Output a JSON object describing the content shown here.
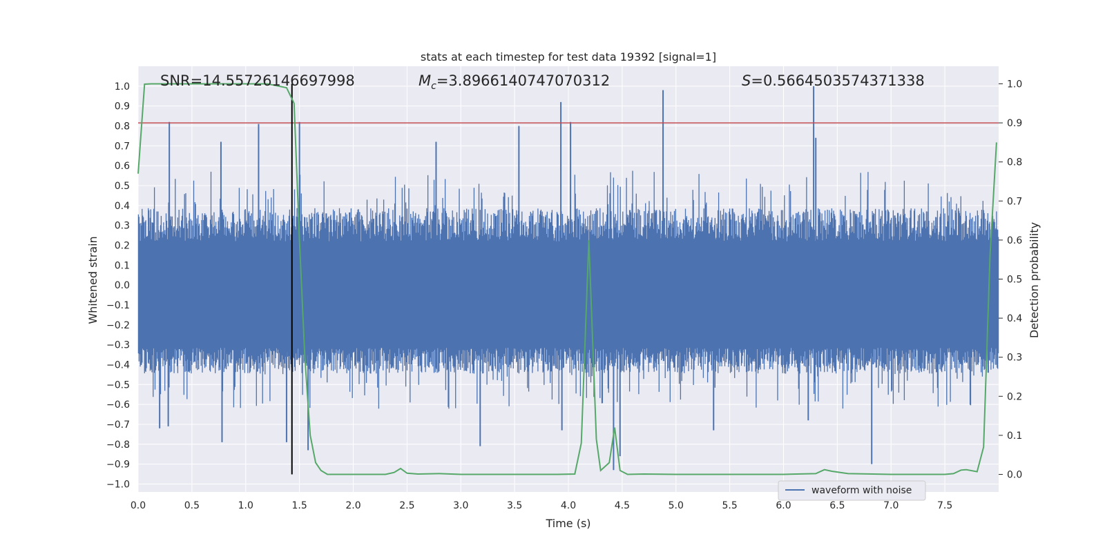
{
  "chart_data": {
    "type": "line",
    "title": "stats at each timestep for test data 19392 [signal=1]",
    "xlabel": "Time (s)",
    "ylabel_left": "Whitened strain",
    "ylabel_right": "Detection probability",
    "xlim": [
      0.0,
      8.0
    ],
    "ylim_left": [
      -1.04,
      1.1
    ],
    "ylim_right": [
      -0.045,
      1.045
    ],
    "x_ticks": [
      "0.0",
      "0.5",
      "1.0",
      "1.5",
      "2.0",
      "2.5",
      "3.0",
      "3.5",
      "4.0",
      "4.5",
      "5.0",
      "5.5",
      "6.0",
      "6.5",
      "7.0",
      "7.5"
    ],
    "x_tick_values": [
      0.0,
      0.5,
      1.0,
      1.5,
      2.0,
      2.5,
      3.0,
      3.5,
      4.0,
      4.5,
      5.0,
      5.5,
      6.0,
      6.5,
      7.0,
      7.5
    ],
    "y_left_ticks": [
      "1.0",
      "0.9",
      "0.8",
      "0.7",
      "0.6",
      "0.5",
      "0.4",
      "0.3",
      "0.2",
      "0.1",
      "0.0",
      "−0.1",
      "−0.2",
      "−0.3",
      "−0.4",
      "−0.5",
      "−0.6",
      "−0.7",
      "−0.8",
      "−0.9",
      "−1.0"
    ],
    "y_left_tick_values": [
      1.0,
      0.9,
      0.8,
      0.7,
      0.6,
      0.5,
      0.4,
      0.3,
      0.2,
      0.1,
      0.0,
      -0.1,
      -0.2,
      -0.3,
      -0.4,
      -0.5,
      -0.6,
      -0.7,
      -0.8,
      -0.9,
      -1.0
    ],
    "y_right_ticks": [
      "1.0",
      "0.9",
      "0.8",
      "0.7",
      "0.6",
      "0.5",
      "0.4",
      "0.3",
      "0.2",
      "0.1",
      "0.0"
    ],
    "y_right_tick_values": [
      1.0,
      0.9,
      0.8,
      0.7,
      0.6,
      0.5,
      0.4,
      0.3,
      0.2,
      0.1,
      0.0
    ],
    "annotations": {
      "snr": "SNR=14.55726146697998",
      "mc_symbol": "M",
      "mc_subscript": "c",
      "mc_value": "=3.8966140747070312",
      "s_symbol": "S",
      "s_value": "=0.5664503574371338"
    },
    "threshold": {
      "value": 0.9,
      "axis": "right",
      "color": "#c44e52"
    },
    "vertical_marker": {
      "x": 1.43,
      "y_from": 0.0,
      "y_to": 1.0,
      "axis": "right",
      "color": "#000000"
    },
    "series": [
      {
        "name": "waveform with noise",
        "axis": "left",
        "color": "#4c72b0",
        "description_stats": {
          "band_low": -0.35,
          "band_high": 0.4
        },
        "spikes": [
          {
            "x": 0.29,
            "y": 0.82
          },
          {
            "x": 1.12,
            "y": 0.81
          },
          {
            "x": 1.5,
            "y": 0.82
          },
          {
            "x": 3.54,
            "y": 0.8
          },
          {
            "x": 3.93,
            "y": 0.92
          },
          {
            "x": 4.02,
            "y": 0.82
          },
          {
            "x": 4.88,
            "y": 0.98
          },
          {
            "x": 6.28,
            "y": 1.0
          },
          {
            "x": 6.3,
            "y": 0.74
          },
          {
            "x": 0.77,
            "y": 0.72
          },
          {
            "x": 2.77,
            "y": 0.72
          },
          {
            "x": 0.28,
            "y": -0.71
          },
          {
            "x": 0.78,
            "y": -0.79
          },
          {
            "x": 1.38,
            "y": -0.79
          },
          {
            "x": 1.58,
            "y": -0.83
          },
          {
            "x": 3.18,
            "y": -0.81
          },
          {
            "x": 3.94,
            "y": -0.73
          },
          {
            "x": 4.42,
            "y": -0.93
          },
          {
            "x": 4.48,
            "y": -0.86
          },
          {
            "x": 5.35,
            "y": -0.73
          },
          {
            "x": 6.82,
            "y": -0.9
          },
          {
            "x": 6.23,
            "y": -0.68
          },
          {
            "x": 0.2,
            "y": -0.72
          }
        ]
      },
      {
        "name": "",
        "axis": "right",
        "color": "#55a868",
        "x": [
          0.0,
          0.06,
          0.12,
          0.3,
          0.6,
          0.9,
          1.2,
          1.38,
          1.45,
          1.5,
          1.55,
          1.6,
          1.65,
          1.7,
          1.76,
          1.85,
          2.0,
          2.3,
          2.38,
          2.44,
          2.5,
          2.6,
          2.8,
          3.0,
          3.5,
          3.9,
          4.06,
          4.12,
          4.19,
          4.26,
          4.3,
          4.38,
          4.43,
          4.48,
          4.55,
          4.7,
          5.0,
          5.5,
          6.0,
          6.3,
          6.38,
          6.45,
          6.6,
          7.0,
          7.5,
          7.58,
          7.65,
          7.7,
          7.8,
          7.86,
          7.92,
          7.98
        ],
        "y": [
          0.77,
          0.999,
          1.0,
          1.0,
          1.0,
          1.0,
          1.0,
          0.99,
          0.95,
          0.6,
          0.3,
          0.1,
          0.03,
          0.01,
          0.0,
          0.0,
          0.0,
          0.0,
          0.005,
          0.015,
          0.003,
          0.001,
          0.002,
          0.0,
          0.0,
          0.0,
          0.001,
          0.08,
          0.6,
          0.09,
          0.01,
          0.03,
          0.12,
          0.01,
          0.0,
          0.001,
          0.0,
          0.0,
          0.0,
          0.002,
          0.012,
          0.008,
          0.002,
          0.0,
          0.0,
          0.002,
          0.011,
          0.012,
          0.007,
          0.07,
          0.56,
          0.85
        ]
      }
    ],
    "legend": {
      "entries": [
        "waveform with noise"
      ],
      "placement": "lower-right"
    },
    "grid": true,
    "colors": {
      "axes_bg": "#eaeaf2",
      "grid": "#ffffff",
      "waveform": "#4c72b0",
      "probability": "#55a868",
      "threshold": "#c44e52"
    }
  }
}
